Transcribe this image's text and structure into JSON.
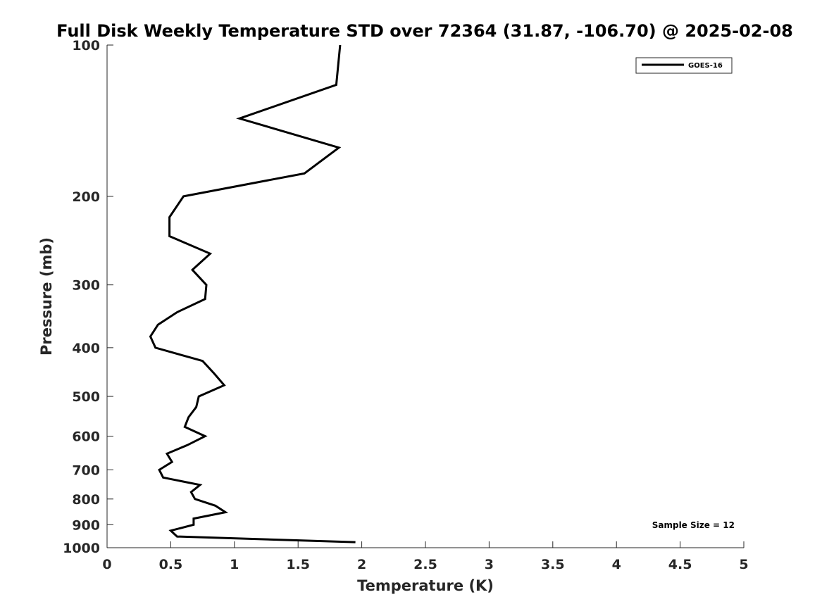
{
  "chart_data": {
    "type": "line",
    "title": "Full Disk Weekly Temperature STD over 72364 (31.87, -106.70) @ 2025-02-08",
    "xlabel": "Temperature (K)",
    "ylabel": "Pressure (mb)",
    "xlim": [
      0,
      5
    ],
    "ylim": [
      1000,
      100
    ],
    "y_scale": "log",
    "y_reversed": true,
    "grid": false,
    "legend_position": "top-right",
    "x_ticks": [
      "0",
      "0.5",
      "1",
      "1.5",
      "2",
      "2.5",
      "3",
      "3.5",
      "4",
      "4.5",
      "5"
    ],
    "y_ticks": [
      "100",
      "200",
      "300",
      "400",
      "500",
      "600",
      "700",
      "800",
      "900",
      "1000"
    ],
    "annotation": "Sample Size = 12",
    "series": [
      {
        "name": "GOES-16",
        "color": "#000000",
        "points": [
          {
            "x": 1.83,
            "y": 100
          },
          {
            "x": 1.8,
            "y": 120
          },
          {
            "x": 1.04,
            "y": 140
          },
          {
            "x": 1.82,
            "y": 160
          },
          {
            "x": 1.55,
            "y": 180
          },
          {
            "x": 0.6,
            "y": 200
          },
          {
            "x": 0.49,
            "y": 220
          },
          {
            "x": 0.49,
            "y": 240
          },
          {
            "x": 0.81,
            "y": 260
          },
          {
            "x": 0.67,
            "y": 280
          },
          {
            "x": 0.78,
            "y": 300
          },
          {
            "x": 0.77,
            "y": 320
          },
          {
            "x": 0.55,
            "y": 340
          },
          {
            "x": 0.4,
            "y": 360
          },
          {
            "x": 0.34,
            "y": 380
          },
          {
            "x": 0.38,
            "y": 400
          },
          {
            "x": 0.75,
            "y": 425
          },
          {
            "x": 0.84,
            "y": 450
          },
          {
            "x": 0.92,
            "y": 475
          },
          {
            "x": 0.72,
            "y": 500
          },
          {
            "x": 0.7,
            "y": 525
          },
          {
            "x": 0.64,
            "y": 550
          },
          {
            "x": 0.61,
            "y": 575
          },
          {
            "x": 0.77,
            "y": 600
          },
          {
            "x": 0.63,
            "y": 625
          },
          {
            "x": 0.47,
            "y": 650
          },
          {
            "x": 0.51,
            "y": 675
          },
          {
            "x": 0.41,
            "y": 700
          },
          {
            "x": 0.44,
            "y": 725
          },
          {
            "x": 0.73,
            "y": 750
          },
          {
            "x": 0.66,
            "y": 775
          },
          {
            "x": 0.69,
            "y": 800
          },
          {
            "x": 0.85,
            "y": 825
          },
          {
            "x": 0.93,
            "y": 850
          },
          {
            "x": 0.68,
            "y": 875
          },
          {
            "x": 0.68,
            "y": 900
          },
          {
            "x": 0.5,
            "y": 925
          },
          {
            "x": 0.55,
            "y": 950
          },
          {
            "x": 1.95,
            "y": 975
          }
        ]
      }
    ]
  }
}
